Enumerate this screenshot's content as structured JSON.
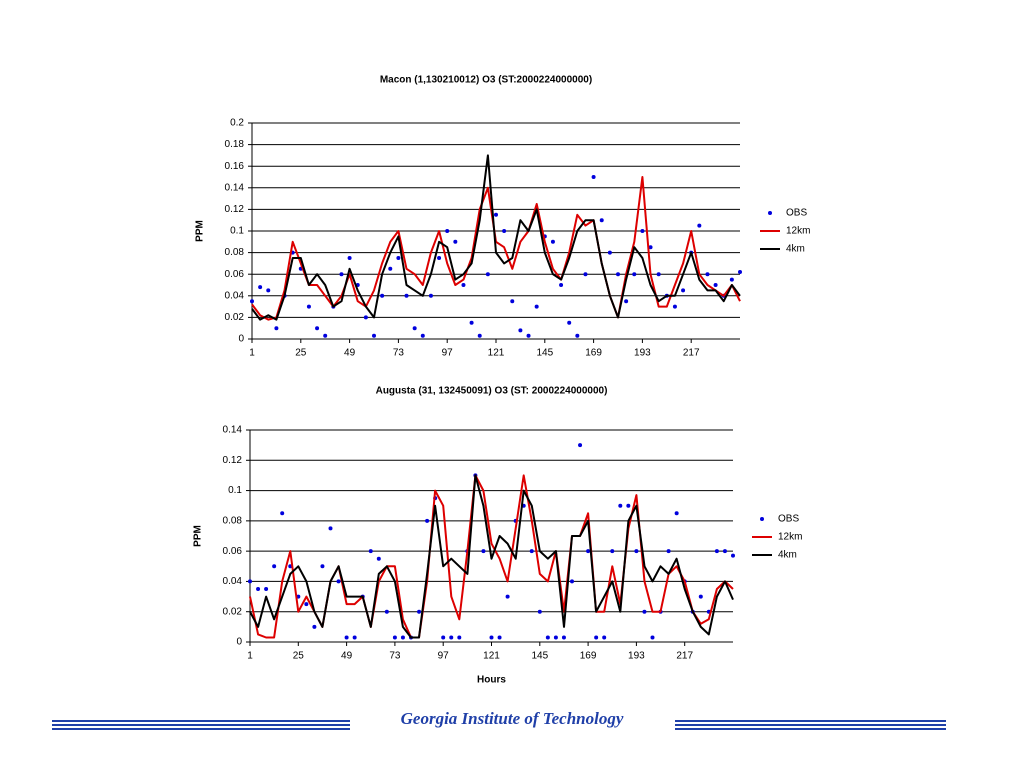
{
  "footer": "Georgia Institute of Technology",
  "chart_data": [
    {
      "type": "line",
      "title": "Macon (1,130210012) O3 (ST:2000224000000)",
      "ylabel": "PPM",
      "grid": true,
      "legend": "right",
      "xlim": [
        1,
        241
      ],
      "xticks": [
        1,
        25,
        49,
        73,
        97,
        121,
        145,
        169,
        193,
        217
      ],
      "ylim": [
        0,
        0.2
      ],
      "yticks": [
        0,
        0.02,
        0.04,
        0.06,
        0.08,
        0.1,
        0.12,
        0.14,
        0.16,
        0.18,
        0.2
      ],
      "x": [
        1,
        5,
        9,
        13,
        17,
        21,
        25,
        29,
        33,
        37,
        41,
        45,
        49,
        53,
        57,
        61,
        65,
        69,
        73,
        77,
        81,
        85,
        89,
        93,
        97,
        101,
        105,
        109,
        113,
        117,
        121,
        125,
        129,
        133,
        137,
        141,
        145,
        149,
        153,
        157,
        161,
        165,
        169,
        173,
        177,
        181,
        185,
        189,
        193,
        197,
        201,
        205,
        209,
        213,
        217,
        221,
        225,
        229,
        233,
        237,
        241
      ],
      "series": [
        {
          "name": "OBS",
          "color": "#0000dd",
          "mode": "markers",
          "values": [
            0.035,
            0.048,
            0.045,
            0.01,
            0.04,
            0.08,
            0.065,
            0.03,
            0.01,
            0.003,
            0.03,
            0.06,
            0.075,
            0.05,
            0.02,
            0.003,
            0.04,
            0.065,
            0.075,
            0.04,
            0.01,
            0.003,
            0.04,
            0.075,
            0.1,
            0.09,
            0.05,
            0.015,
            0.003,
            0.06,
            0.115,
            0.1,
            0.035,
            0.008,
            0.003,
            0.03,
            0.095,
            0.09,
            0.05,
            0.015,
            0.003,
            0.06,
            0.15,
            0.11,
            0.08,
            0.06,
            0.035,
            0.06,
            0.1,
            0.085,
            0.06,
            0.04,
            0.03,
            0.045,
            0.08,
            0.105,
            0.06,
            0.05,
            0.04,
            0.055,
            0.062
          ]
        },
        {
          "name": "12km",
          "color": "#dd0000",
          "mode": "line",
          "values": [
            0.032,
            0.022,
            0.018,
            0.02,
            0.045,
            0.09,
            0.07,
            0.05,
            0.05,
            0.04,
            0.03,
            0.04,
            0.06,
            0.035,
            0.03,
            0.045,
            0.07,
            0.09,
            0.1,
            0.065,
            0.06,
            0.05,
            0.08,
            0.1,
            0.07,
            0.05,
            0.055,
            0.075,
            0.12,
            0.14,
            0.09,
            0.085,
            0.065,
            0.09,
            0.1,
            0.125,
            0.09,
            0.065,
            0.055,
            0.08,
            0.115,
            0.105,
            0.11,
            0.07,
            0.04,
            0.02,
            0.06,
            0.09,
            0.15,
            0.06,
            0.03,
            0.03,
            0.05,
            0.07,
            0.1,
            0.06,
            0.05,
            0.045,
            0.04,
            0.05,
            0.035
          ]
        },
        {
          "name": "4km",
          "color": "#000000",
          "mode": "line",
          "values": [
            0.028,
            0.018,
            0.022,
            0.018,
            0.04,
            0.075,
            0.075,
            0.05,
            0.06,
            0.05,
            0.03,
            0.035,
            0.065,
            0.045,
            0.03,
            0.02,
            0.06,
            0.08,
            0.095,
            0.05,
            0.045,
            0.04,
            0.06,
            0.09,
            0.085,
            0.055,
            0.06,
            0.07,
            0.11,
            0.17,
            0.08,
            0.07,
            0.075,
            0.11,
            0.1,
            0.12,
            0.08,
            0.06,
            0.055,
            0.075,
            0.1,
            0.11,
            0.11,
            0.07,
            0.04,
            0.02,
            0.055,
            0.085,
            0.075,
            0.05,
            0.035,
            0.04,
            0.04,
            0.06,
            0.08,
            0.055,
            0.045,
            0.045,
            0.035,
            0.05,
            0.04
          ]
        }
      ]
    },
    {
      "type": "line",
      "title": "Augusta (31, 132450091) O3 (ST: 2000224000000)",
      "ylabel": "PPM",
      "xlabel": "Hours",
      "grid": true,
      "legend": "right",
      "xlim": [
        1,
        241
      ],
      "xticks": [
        1,
        25,
        49,
        73,
        97,
        121,
        145,
        169,
        193,
        217
      ],
      "ylim": [
        0,
        0.14
      ],
      "yticks": [
        0,
        0.02,
        0.04,
        0.06,
        0.08,
        0.1,
        0.12,
        0.14
      ],
      "x": [
        1,
        5,
        9,
        13,
        17,
        21,
        25,
        29,
        33,
        37,
        41,
        45,
        49,
        53,
        57,
        61,
        65,
        69,
        73,
        77,
        81,
        85,
        89,
        93,
        97,
        101,
        105,
        109,
        113,
        117,
        121,
        125,
        129,
        133,
        137,
        141,
        145,
        149,
        153,
        157,
        161,
        165,
        169,
        173,
        177,
        181,
        185,
        189,
        193,
        197,
        201,
        205,
        209,
        213,
        217,
        221,
        225,
        229,
        233,
        237,
        241
      ],
      "series": [
        {
          "name": "OBS",
          "color": "#0000dd",
          "mode": "markers",
          "values": [
            0.04,
            0.035,
            0.035,
            0.05,
            0.085,
            0.05,
            0.03,
            0.025,
            0.01,
            0.05,
            0.075,
            0.04,
            0.003,
            0.003,
            0.03,
            0.06,
            0.055,
            0.02,
            0.003,
            0.003,
            0.003,
            0.02,
            0.08,
            0.095,
            0.003,
            0.003,
            0.003,
            0.06,
            0.11,
            0.06,
            0.003,
            0.003,
            0.03,
            0.08,
            0.09,
            0.06,
            0.02,
            0.003,
            0.003,
            0.003,
            0.04,
            0.13,
            0.06,
            0.003,
            0.003,
            0.06,
            0.09,
            0.09,
            0.06,
            0.02,
            0.003,
            0.02,
            0.06,
            0.085,
            0.04,
            0.02,
            0.03,
            0.02,
            0.06,
            0.06,
            0.057
          ]
        },
        {
          "name": "12km",
          "color": "#dd0000",
          "mode": "line",
          "values": [
            0.03,
            0.005,
            0.003,
            0.003,
            0.04,
            0.06,
            0.02,
            0.03,
            0.02,
            0.01,
            0.04,
            0.05,
            0.025,
            0.025,
            0.03,
            0.01,
            0.04,
            0.05,
            0.05,
            0.015,
            0.003,
            0.003,
            0.04,
            0.1,
            0.09,
            0.03,
            0.015,
            0.06,
            0.11,
            0.1,
            0.065,
            0.055,
            0.04,
            0.075,
            0.11,
            0.08,
            0.045,
            0.04,
            0.06,
            0.02,
            0.07,
            0.07,
            0.085,
            0.02,
            0.02,
            0.05,
            0.025,
            0.075,
            0.097,
            0.04,
            0.02,
            0.02,
            0.045,
            0.05,
            0.04,
            0.02,
            0.012,
            0.015,
            0.035,
            0.04,
            0.035
          ]
        },
        {
          "name": "4km",
          "color": "#000000",
          "mode": "line",
          "values": [
            0.02,
            0.01,
            0.03,
            0.015,
            0.03,
            0.045,
            0.05,
            0.04,
            0.02,
            0.01,
            0.04,
            0.05,
            0.03,
            0.03,
            0.03,
            0.01,
            0.045,
            0.05,
            0.04,
            0.01,
            0.003,
            0.003,
            0.045,
            0.09,
            0.05,
            0.055,
            0.05,
            0.045,
            0.11,
            0.09,
            0.055,
            0.07,
            0.065,
            0.055,
            0.1,
            0.09,
            0.06,
            0.055,
            0.06,
            0.01,
            0.07,
            0.07,
            0.08,
            0.02,
            0.03,
            0.04,
            0.02,
            0.08,
            0.09,
            0.05,
            0.04,
            0.05,
            0.045,
            0.055,
            0.035,
            0.02,
            0.01,
            0.005,
            0.03,
            0.04,
            0.028
          ]
        }
      ]
    }
  ]
}
